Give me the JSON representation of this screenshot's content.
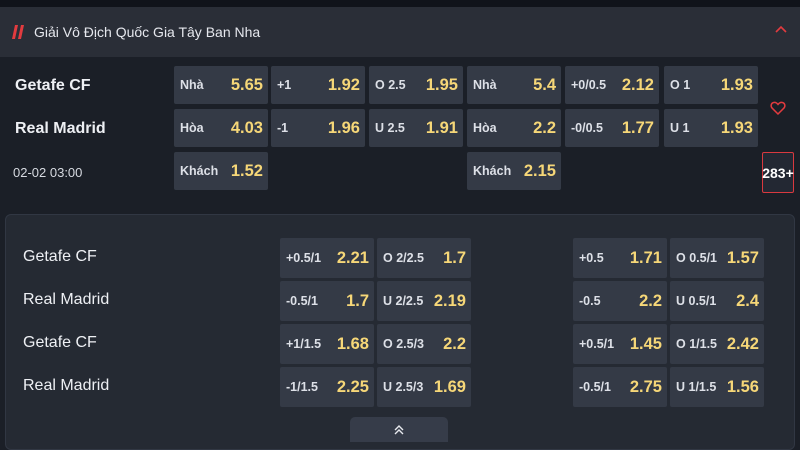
{
  "league": {
    "name": "Giải Vô Địch Quốc Gia Tây Ban Nha",
    "logo_icon": "league-logo-icon",
    "collapse_icon": "chevron-up-icon",
    "accent": "#e23b3f"
  },
  "match": {
    "home": "Getafe CF",
    "away": "Real Madrid",
    "time": "02-02 03:00",
    "more_count": "283+",
    "favorite_icon": "heart-icon",
    "odds": {
      "ft_1x2": [
        {
          "label": "Nhà",
          "odd": "5.65"
        },
        {
          "label": "Hòa",
          "odd": "4.03"
        },
        {
          "label": "Khách",
          "odd": "1.52"
        }
      ],
      "ft_handicap": [
        {
          "label": "+1",
          "odd": "1.92"
        },
        {
          "label": "-1",
          "odd": "1.96"
        }
      ],
      "ft_ou": [
        {
          "label": "O 2.5",
          "odd": "1.95"
        },
        {
          "label": "U 2.5",
          "odd": "1.91"
        }
      ],
      "h1_1x2": [
        {
          "label": "Nhà",
          "odd": "5.4"
        },
        {
          "label": "Hòa",
          "odd": "2.2"
        },
        {
          "label": "Khách",
          "odd": "2.15"
        }
      ],
      "h1_handicap": [
        {
          "label": "+0/0.5",
          "odd": "2.12"
        },
        {
          "label": "-0/0.5",
          "odd": "1.77"
        }
      ],
      "h1_ou": [
        {
          "label": "O 1",
          "odd": "1.93"
        },
        {
          "label": "U 1",
          "odd": "1.93"
        }
      ]
    }
  },
  "extra": {
    "rows": [
      {
        "team": "Getafe CF",
        "ft_hdp": {
          "label": "+0.5/1",
          "odd": "2.21"
        },
        "ft_ou": {
          "label": "O 2/2.5",
          "odd": "1.7"
        },
        "h1_hdp": {
          "label": "+0.5",
          "odd": "1.71"
        },
        "h1_ou": {
          "label": "O 0.5/1",
          "odd": "1.57"
        }
      },
      {
        "team": "Real Madrid",
        "ft_hdp": {
          "label": "-0.5/1",
          "odd": "1.7"
        },
        "ft_ou": {
          "label": "U 2/2.5",
          "odd": "2.19"
        },
        "h1_hdp": {
          "label": "-0.5",
          "odd": "2.2"
        },
        "h1_ou": {
          "label": "U 0.5/1",
          "odd": "2.4"
        }
      },
      {
        "team": "Getafe CF",
        "ft_hdp": {
          "label": "+1/1.5",
          "odd": "1.68"
        },
        "ft_ou": {
          "label": "O 2.5/3",
          "odd": "2.2"
        },
        "h1_hdp": {
          "label": "+0.5/1",
          "odd": "1.45"
        },
        "h1_ou": {
          "label": "O 1/1.5",
          "odd": "2.42"
        }
      },
      {
        "team": "Real Madrid",
        "ft_hdp": {
          "label": "-1/1.5",
          "odd": "2.25"
        },
        "ft_ou": {
          "label": "U 2.5/3",
          "odd": "1.69"
        },
        "h1_hdp": {
          "label": "-0.5/1",
          "odd": "2.75"
        },
        "h1_ou": {
          "label": "U 1/1.5",
          "odd": "1.56"
        }
      }
    ],
    "toggle_icon": "double-chevron-up-icon"
  },
  "colors": {
    "background": "#1b1f27",
    "cell": "#343a46",
    "odd": "#f6d778",
    "header": "#2a2e37"
  }
}
